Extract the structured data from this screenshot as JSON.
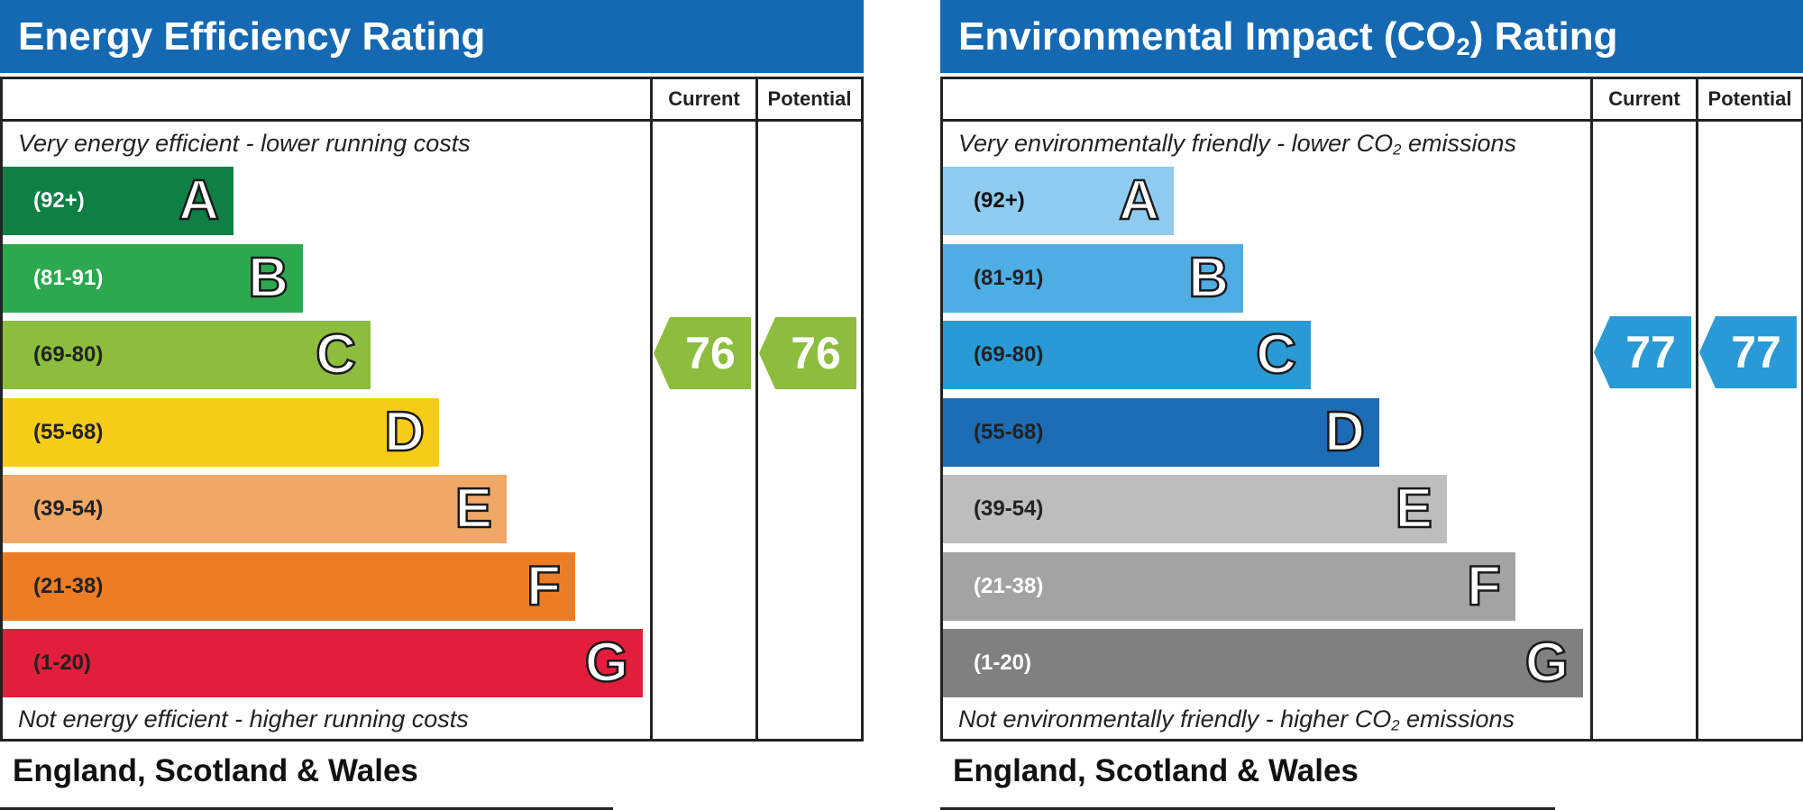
{
  "left": {
    "title": "Energy Efficiency Rating",
    "col_current": "Current",
    "col_potential": "Potential",
    "top_caption": "Very energy efficient - lower running costs",
    "bottom_caption": "Not energy efficient - higher running costs",
    "footer": "England, Scotland & Wales"
  },
  "right": {
    "title_pre": "Environmental Impact (CO",
    "title_sub": "2",
    "title_post": ") Rating",
    "col_current": "Current",
    "col_potential": "Potential",
    "top_caption_pre": "Very environmentally friendly - lower CO",
    "top_caption_sub": "2",
    "top_caption_post": " emissions",
    "bottom_caption_pre": "Not environmentally friendly - higher CO",
    "bottom_caption_sub": "2",
    "bottom_caption_post": " emissions",
    "footer": "England, Scotland & Wales"
  },
  "chart_data": [
    {
      "type": "bar",
      "title": "Energy Efficiency Rating",
      "categories": [
        "A",
        "B",
        "C",
        "D",
        "E",
        "F",
        "G"
      ],
      "ranges": [
        "(92+)",
        "(81-91)",
        "(69-80)",
        "(55-68)",
        "(39-54)",
        "(21-38)",
        "(1-20)"
      ],
      "colors": [
        "#0e8045",
        "#2ca84f",
        "#8cbd3f",
        "#f5cc18",
        "#f1a766",
        "#ec7d25",
        "#e21e3c"
      ],
      "range_text_colors": [
        "#ffffff",
        "#ffffff",
        "#222222",
        "#222222",
        "#222222",
        "#222222",
        "#222222"
      ],
      "current": 76,
      "potential": 76,
      "indicator_color": "#8cbd3f"
    },
    {
      "type": "bar",
      "title": "Environmental Impact (CO2) Rating",
      "categories": [
        "A",
        "B",
        "C",
        "D",
        "E",
        "F",
        "G"
      ],
      "ranges": [
        "(92+)",
        "(81-91)",
        "(69-80)",
        "(55-68)",
        "(39-54)",
        "(21-38)",
        "(1-20)"
      ],
      "colors": [
        "#8ecbee",
        "#4eade3",
        "#2a9ad6",
        "#1c6db5",
        "#bdbdbb",
        "#a3a3a3",
        "#808080"
      ],
      "range_text_colors": [
        "#111111",
        "#222222",
        "#222222",
        "#222222",
        "#222222",
        "#ffffff",
        "#ffffff"
      ],
      "current": 77,
      "potential": 77,
      "indicator_color": "#2a9ad6"
    }
  ]
}
